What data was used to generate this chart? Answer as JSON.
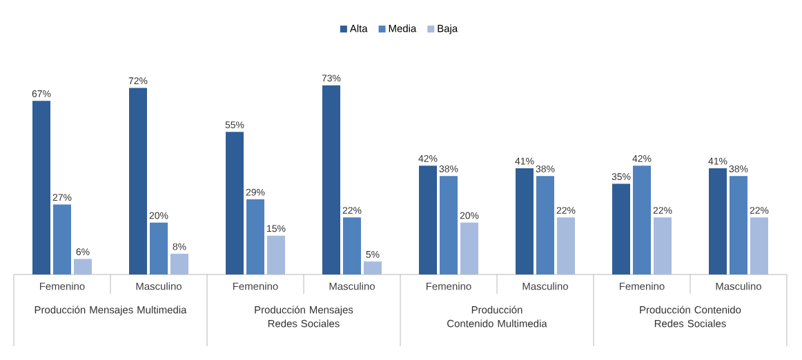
{
  "chart_data": {
    "type": "bar",
    "categories": [
      "Femenino",
      "Masculino",
      "Femenino",
      "Masculino",
      "Femenino",
      "Masculino",
      "Femenino",
      "Masculino"
    ],
    "series": [
      {
        "name": "Alta",
        "color": "#2f5d95",
        "values": [
          67,
          72,
          55,
          73,
          42,
          41,
          35,
          41
        ],
        "value_labels": [
          "67%",
          "72%",
          "55%",
          "73%",
          "42%",
          "41%",
          "35%",
          "41%"
        ]
      },
      {
        "name": "Media",
        "color": "#4f81bd",
        "values": [
          27,
          20,
          29,
          22,
          38,
          38,
          42,
          38
        ],
        "value_labels": [
          "27%",
          "20%",
          "29%",
          "22%",
          "38%",
          "38%",
          "42%",
          "38%"
        ]
      },
      {
        "name": "Baja",
        "color": "#a7bbde",
        "values": [
          6,
          8,
          15,
          5,
          20,
          22,
          22,
          22
        ],
        "value_labels": [
          "6%",
          "8%",
          "15%",
          "5%",
          "20%",
          "22%",
          "22%",
          "22%"
        ]
      }
    ],
    "annotations": [
      "Producción Mensajes Multimedia",
      "Producción Mensajes Redes Sociales",
      "Producción Contenido Multimedia",
      "Producción Contenido Redes Sociales"
    ],
    "legend": "top"
  }
}
